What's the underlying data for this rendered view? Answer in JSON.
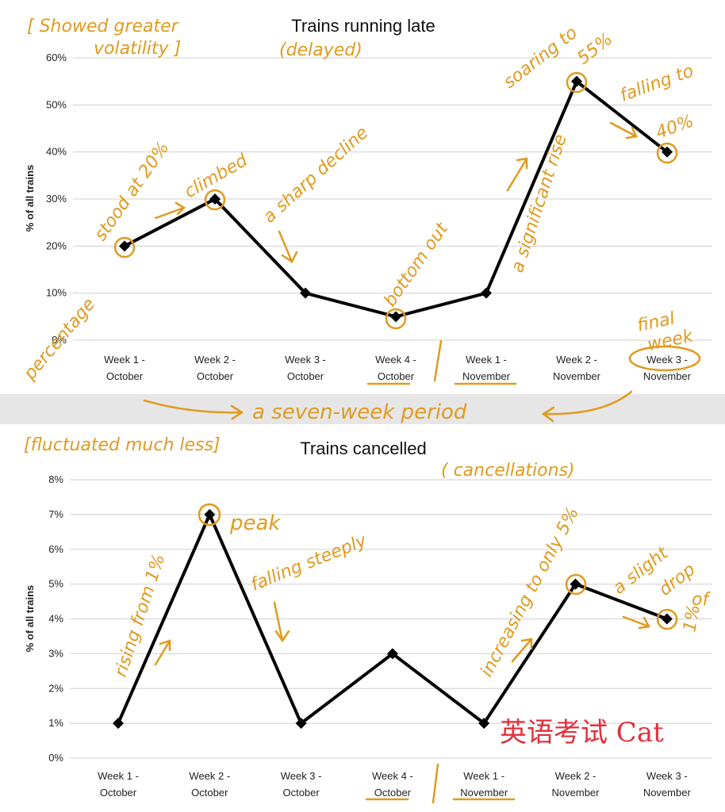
{
  "chart_data": [
    {
      "type": "line",
      "title": "Trains running late",
      "ylabel": "% of all trains",
      "ylim": [
        0,
        60
      ],
      "yticks": [
        "0%",
        "10%",
        "20%",
        "30%",
        "40%",
        "50%",
        "60%"
      ],
      "categories": [
        [
          "Week 1 -",
          "October"
        ],
        [
          "Week 2 -",
          "October"
        ],
        [
          "Week 3 -",
          "October"
        ],
        [
          "Week 4 -",
          "October"
        ],
        [
          "Week 1 -",
          "November"
        ],
        [
          "Week 2 -",
          "November"
        ],
        [
          "Week 3 -",
          "November"
        ]
      ],
      "values": [
        20,
        30,
        10,
        5,
        10,
        55,
        40
      ],
      "grid": true,
      "series_color": "#000000"
    },
    {
      "type": "line",
      "title": "Trains cancelled",
      "ylabel": "% of all trains",
      "ylim": [
        0,
        8
      ],
      "yticks": [
        "0%",
        "1%",
        "2%",
        "3%",
        "4%",
        "5%",
        "6%",
        "7%",
        "8%"
      ],
      "categories": [
        [
          "Week 1 -",
          "October"
        ],
        [
          "Week 2 -",
          "October"
        ],
        [
          "Week 3 -",
          "October"
        ],
        [
          "Week 4 -",
          "October"
        ],
        [
          "Week 1 -",
          "November"
        ],
        [
          "Week 2 -",
          "November"
        ],
        [
          "Week 3 -",
          "November"
        ]
      ],
      "values": [
        1,
        7,
        1,
        3,
        1,
        5,
        4
      ],
      "grid": true,
      "series_color": "#000000"
    }
  ],
  "annotations": {
    "color": "#e09a1f",
    "top": {
      "volatility": [
        "Showed greater",
        "volatility"
      ],
      "delayed": "(delayed)",
      "stood": "stood at 20%",
      "climbed": "climbed",
      "decline": "a sharp decline",
      "bottom": "bottom out",
      "rise": "a significant rise",
      "soaring": [
        "soaring to",
        "55%"
      ],
      "falling": [
        "falling to",
        "40%"
      ],
      "percentage": "percentage",
      "final": [
        "final",
        "week"
      ],
      "period": "a seven-week period"
    },
    "bottom": {
      "fluctuated": "[fluctuated much less]",
      "cancellations": "( cancellations)",
      "peak": "peak",
      "rising": "rising from 1%",
      "falling": "falling steeply",
      "increasing": "increasing to only 5%",
      "slight": [
        "a slight",
        "drop",
        "of",
        "1%"
      ]
    }
  },
  "watermark": "英语考试 Cat",
  "watermark_color": "#e0303a"
}
